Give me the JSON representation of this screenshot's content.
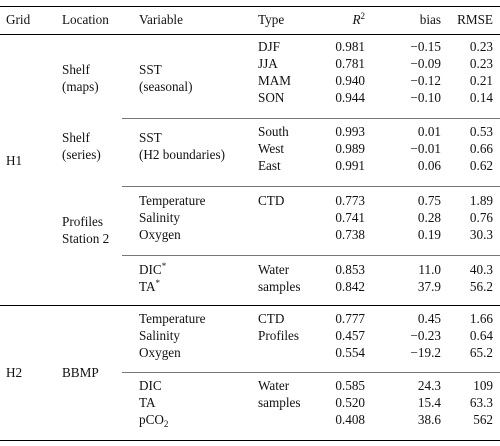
{
  "headers": {
    "grid": "Grid",
    "location": "Location",
    "variable": "Variable",
    "type": "Type",
    "r2_base": "R",
    "r2_exp": "2",
    "bias": "bias",
    "rmse": "RMSE"
  },
  "groups": {
    "h1": "H1",
    "h2": "H2",
    "shelf_maps": [
      "Shelf",
      "(maps)"
    ],
    "shelf_series": [
      "Shelf",
      "(series)"
    ],
    "profiles": [
      "Profiles",
      "Station 2"
    ],
    "bbmp": "BBMP",
    "sst_seasonal": [
      "SST",
      "(seasonal)"
    ],
    "sst_h2": [
      "SST",
      "(H2 boundaries)"
    ]
  },
  "rows": [
    {
      "variable": "",
      "type": "DJF",
      "r2": "0.981",
      "bias": "−0.15",
      "rmse": "0.23"
    },
    {
      "variable": "",
      "type": "JJA",
      "r2": "0.781",
      "bias": "−0.09",
      "rmse": "0.23"
    },
    {
      "variable": "",
      "type": "MAM",
      "r2": "0.940",
      "bias": "−0.12",
      "rmse": "0.21"
    },
    {
      "variable": "",
      "type": "SON",
      "r2": "0.944",
      "bias": "−0.10",
      "rmse": "0.14"
    },
    {
      "variable": "",
      "type": "South",
      "r2": "0.993",
      "bias": "0.01",
      "rmse": "0.53"
    },
    {
      "variable": "",
      "type": "West",
      "r2": "0.989",
      "bias": "−0.01",
      "rmse": "0.66"
    },
    {
      "variable": "",
      "type": "East",
      "r2": "0.991",
      "bias": "0.06",
      "rmse": "0.62"
    },
    {
      "variable": "Temperature",
      "type": "CTD",
      "r2": "0.773",
      "bias": "0.75",
      "rmse": "1.89"
    },
    {
      "variable": "Salinity",
      "type": "",
      "r2": "0.741",
      "bias": "0.28",
      "rmse": "0.76"
    },
    {
      "variable": "Oxygen",
      "type": "",
      "r2": "0.738",
      "bias": "0.19",
      "rmse": "30.3"
    },
    {
      "variable": "DIC",
      "var_sup": "*",
      "type": "Water",
      "r2": "0.853",
      "bias": "11.0",
      "rmse": "40.3"
    },
    {
      "variable": "TA",
      "var_sup": "*",
      "type": "samples",
      "r2": "0.842",
      "bias": "37.9",
      "rmse": "56.2"
    },
    {
      "variable": "Temperature",
      "type": "CTD",
      "r2": "0.777",
      "bias": "0.45",
      "rmse": "1.66"
    },
    {
      "variable": "Salinity",
      "type": "Profiles",
      "r2": "0.457",
      "bias": "−0.23",
      "rmse": "0.64"
    },
    {
      "variable": "Oxygen",
      "type": "",
      "r2": "0.554",
      "bias": "−19.2",
      "rmse": "65.2"
    },
    {
      "variable": "DIC",
      "type": "Water",
      "r2": "0.585",
      "bias": "24.3",
      "rmse": "109"
    },
    {
      "variable": "TA",
      "type": "samples",
      "r2": "0.520",
      "bias": "15.4",
      "rmse": "63.3"
    },
    {
      "variable": "pCO",
      "var_sub": "2",
      "type": "",
      "r2": "0.408",
      "bias": "38.6",
      "rmse": "562"
    }
  ]
}
